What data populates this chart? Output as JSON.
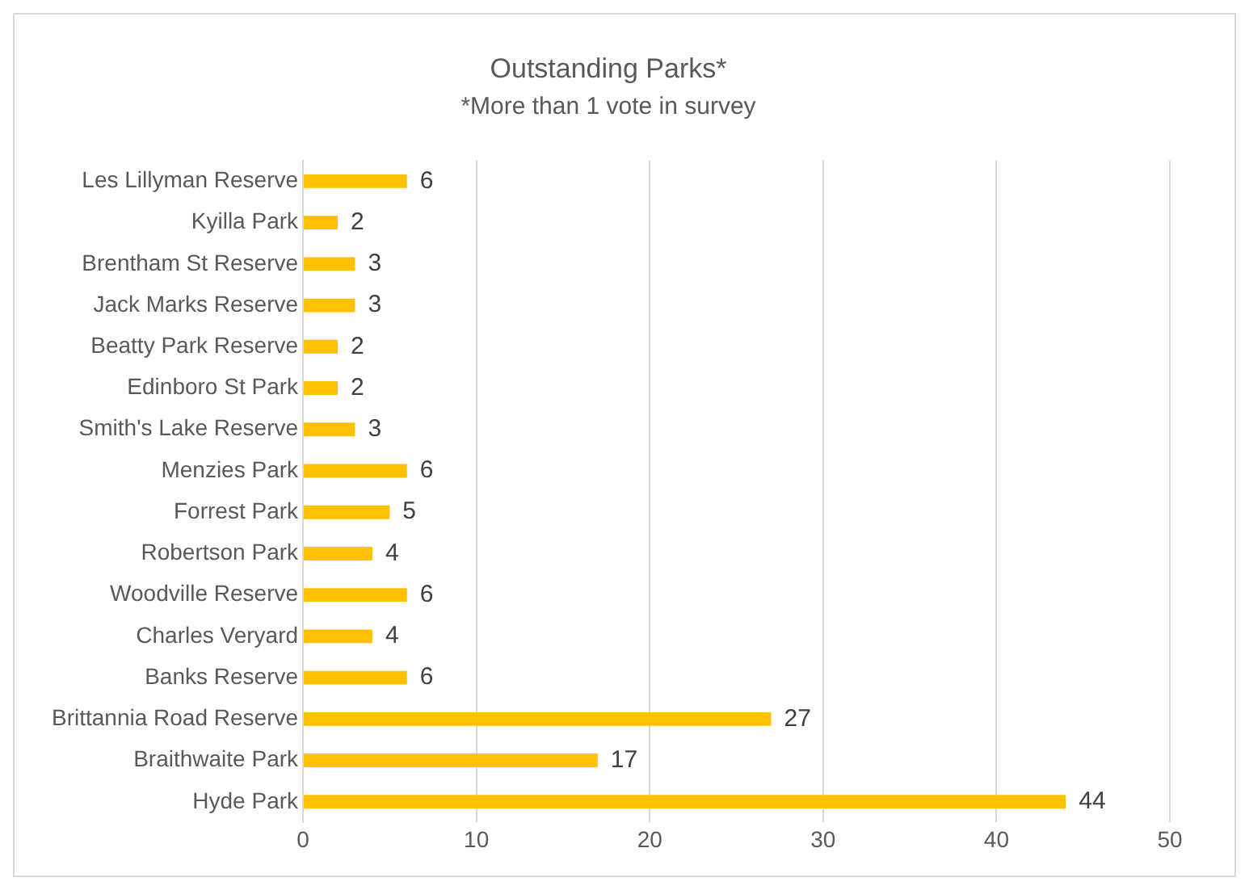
{
  "chart_data": {
    "type": "bar",
    "orientation": "horizontal",
    "title": "Outstanding Parks*",
    "subtitle": "*More than 1 vote in survey",
    "categories": [
      "Les Lillyman Reserve",
      "Kyilla Park",
      "Brentham St Reserve",
      "Jack Marks Reserve",
      "Beatty Park Reserve",
      "Edinboro St Park",
      "Smith's Lake Reserve",
      "Menzies Park",
      "Forrest Park",
      "Robertson Park",
      "Woodville Reserve",
      "Charles Veryard",
      "Banks Reserve",
      "Brittannia Road Reserve",
      "Braithwaite Park",
      "Hyde Park"
    ],
    "values": [
      6,
      2,
      3,
      3,
      2,
      2,
      3,
      6,
      5,
      4,
      6,
      4,
      6,
      27,
      17,
      44
    ],
    "color": "#ffc000",
    "xlim": [
      0,
      50
    ],
    "xticks": [
      0,
      10,
      20,
      30,
      40,
      50
    ],
    "grid": "x",
    "data_labels": true
  }
}
